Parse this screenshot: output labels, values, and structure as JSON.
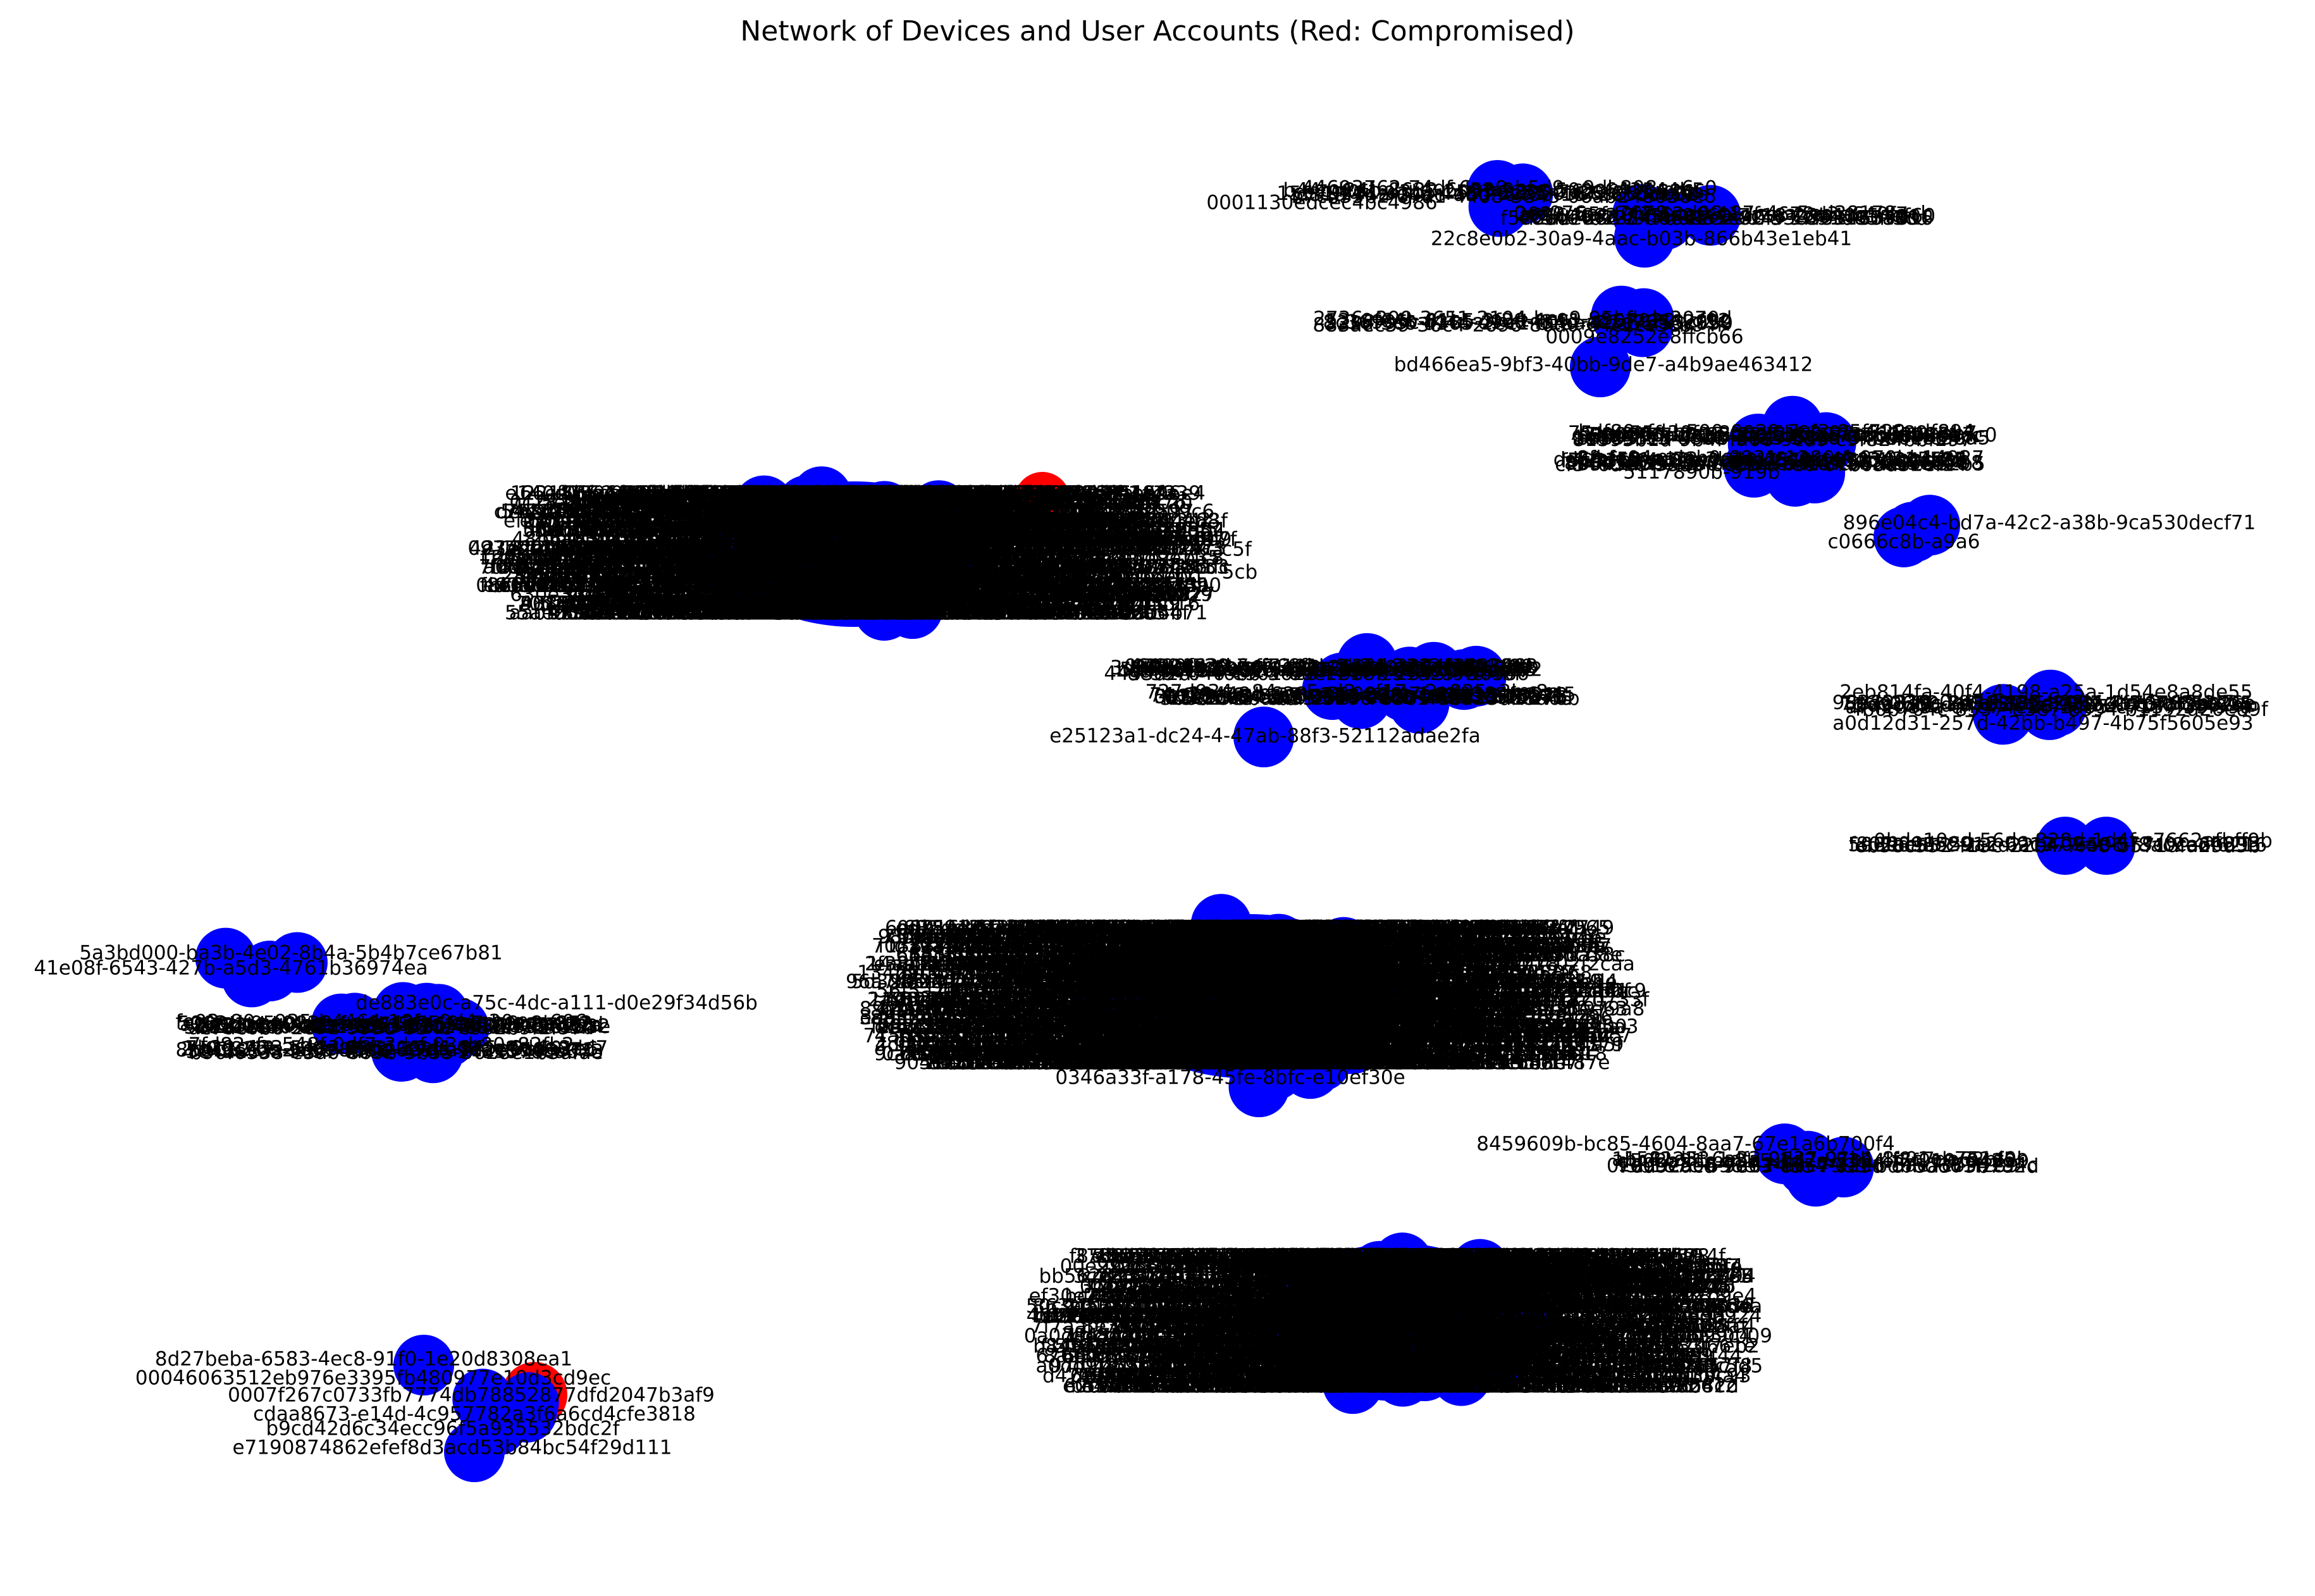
{
  "title": "Network of Devices and User Accounts (Red: Compromised)",
  "colors": {
    "normal": "#0000ff",
    "compromised": "#ff0000",
    "label": "#000000"
  },
  "legend_note": "Red: Compromised",
  "readable_labels": [
    "0001130edcec4bc4986",
    "22c8e0b2-30a9-4aac-b03b-866b43e1eb41",
    "0009e8252e8ffcb66",
    "bd466ea5-9bf3-40bb-9de7-a4b9ae463412",
    "896e04c4-bd7a-42c2-a38b-9ca530decf71",
    "5117890b-919b",
    "c0666c8b-a9a6",
    "2eb814fa-40f4-4198-a25a-1d54e8a8de55",
    "a0d12d31-257d-42bb-b497-4b75f5605e93",
    "5069d9052912",
    "e25123a1-dc24-4",
    "52112adae2fa",
    "5a3bd000-b",
    "5b4b7ce67b81",
    "41e08f-6543-427",
    "de883e0c-a75c-4",
    "d0e29f34d56b",
    "0346a33f-a178-45f",
    "8459609b-bc85-4604",
    "8d27beba-6583-4ec8-91f0-1e20d8308ea1",
    "00046063512eb976",
    "0007f26",
    "dfd2047b3af9",
    "cdaa8673",
    "e7190874862efef8d3",
    "b84bc54f29d111",
    "1f5f2b4c-26b5-4",
    "2",
    "c5f",
    "5cb"
  ]
}
